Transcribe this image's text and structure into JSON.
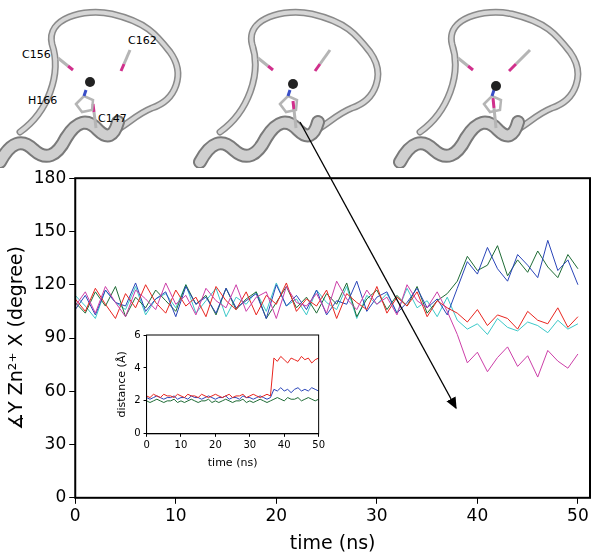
{
  "chart_data": [
    {
      "type": "line",
      "xlabel": "time (ns)",
      "ylabel": "∡Y Zn²⁺ X (degree)",
      "x": [
        0,
        1,
        2,
        3,
        4,
        5,
        6,
        7,
        8,
        9,
        10,
        11,
        12,
        13,
        14,
        15,
        16,
        17,
        18,
        19,
        20,
        21,
        22,
        23,
        24,
        25,
        26,
        27,
        28,
        29,
        30,
        31,
        32,
        33,
        34,
        35,
        36,
        37,
        38,
        39,
        40,
        41,
        42,
        43,
        44,
        45,
        46,
        47,
        48,
        49,
        50
      ],
      "xlim": [
        0,
        51.2
      ],
      "xticks": [
        0,
        10,
        20,
        30,
        40,
        50
      ],
      "ylim": [
        0,
        180
      ],
      "yticks": [
        0,
        30,
        60,
        90,
        120,
        150,
        180
      ],
      "series": [
        {
          "color": "#cc3fa8",
          "values": [
            108,
            116,
            104,
            119,
            110,
            102,
            117,
            112,
            106,
            121,
            109,
            114,
            103,
            118,
            111,
            107,
            120,
            105,
            113,
            116,
            101,
            119,
            110,
            108,
            115,
            104,
            122,
            112,
            106,
            117,
            109,
            113,
            103,
            120,
            111,
            107,
            116,
            105,
            92,
            76,
            82,
            71,
            79,
            85,
            74,
            80,
            68,
            83,
            77,
            73,
            81
          ]
        },
        {
          "color": "#e8251f",
          "values": [
            112,
            105,
            118,
            109,
            101,
            115,
            107,
            120,
            110,
            104,
            117,
            108,
            113,
            102,
            119,
            111,
            106,
            116,
            103,
            114,
            109,
            121,
            105,
            112,
            108,
            117,
            101,
            115,
            110,
            106,
            119,
            104,
            113,
            108,
            116,
            102,
            111,
            107,
            104,
            99,
            106,
            97,
            103,
            101,
            95,
            105,
            100,
            98,
            107,
            96,
            102
          ]
        },
        {
          "color": "#2a45b8",
          "values": [
            106,
            114,
            103,
            117,
            110,
            108,
            121,
            105,
            112,
            116,
            102,
            119,
            109,
            113,
            104,
            118,
            107,
            111,
            115,
            101,
            120,
            108,
            114,
            106,
            117,
            103,
            111,
            109,
            122,
            105,
            113,
            116,
            104,
            110,
            118,
            107,
            112,
            103,
            118,
            133,
            126,
            141,
            129,
            122,
            137,
            131,
            124,
            145,
            128,
            134,
            120
          ]
        },
        {
          "color": "#1e6b35",
          "values": [
            110,
            104,
            116,
            108,
            119,
            102,
            113,
            107,
            117,
            111,
            105,
            120,
            109,
            114,
            103,
            118,
            106,
            112,
            116,
            101,
            110,
            119,
            107,
            113,
            104,
            115,
            109,
            121,
            102,
            112,
            117,
            106,
            114,
            108,
            119,
            104,
            111,
            115,
            122,
            136,
            128,
            131,
            142,
            125,
            134,
            127,
            139,
            130,
            124,
            137,
            129
          ]
        },
        {
          "color": "#3cc8c8",
          "values": [
            114,
            108,
            101,
            117,
            110,
            106,
            119,
            103,
            112,
            115,
            107,
            120,
            104,
            111,
            118,
            102,
            113,
            109,
            116,
            105,
            121,
            108,
            112,
            103,
            117,
            110,
            106,
            119,
            101,
            114,
            109,
            115,
            104,
            118,
            107,
            111,
            102,
            113,
            100,
            95,
            98,
            92,
            101,
            96,
            94,
            99,
            97,
            93,
            100,
            95,
            98
          ]
        }
      ]
    },
    {
      "type": "line",
      "xlabel": "time (ns)",
      "ylabel": "distance (Å)",
      "x": [
        0,
        1,
        2,
        3,
        4,
        5,
        6,
        7,
        8,
        9,
        10,
        11,
        12,
        13,
        14,
        15,
        16,
        17,
        18,
        19,
        20,
        21,
        22,
        23,
        24,
        25,
        26,
        27,
        28,
        29,
        30,
        31,
        32,
        33,
        34,
        35,
        36,
        37,
        38,
        39,
        40,
        41,
        42,
        43,
        44,
        45,
        46,
        47,
        48,
        49,
        50
      ],
      "xlim": [
        0,
        50
      ],
      "xticks": [
        0,
        10,
        20,
        30,
        40,
        50
      ],
      "ylim": [
        0,
        6
      ],
      "yticks": [
        0,
        2,
        4,
        6
      ],
      "series": [
        {
          "color": "#e8251f",
          "values": [
            2.3,
            2.2,
            2.4,
            2.3,
            2.2,
            2.4,
            2.3,
            2.3,
            2.2,
            2.4,
            2.3,
            2.2,
            2.4,
            2.3,
            2.3,
            2.2,
            2.4,
            2.3,
            2.2,
            2.3,
            2.4,
            2.3,
            2.2,
            2.3,
            2.4,
            2.2,
            2.3,
            2.3,
            2.4,
            2.2,
            2.3,
            2.4,
            2.3,
            2.2,
            2.3,
            2.4,
            2.3,
            4.6,
            4.4,
            4.7,
            4.5,
            4.3,
            4.6,
            4.5,
            4.4,
            4.7,
            4.5,
            4.6,
            4.3,
            4.5,
            4.6
          ]
        },
        {
          "color": "#2a45b8",
          "values": [
            2.2,
            2.1,
            2.2,
            2.3,
            2.2,
            2.1,
            2.2,
            2.2,
            2.3,
            2.1,
            2.2,
            2.2,
            2.1,
            2.3,
            2.2,
            2.2,
            2.1,
            2.2,
            2.3,
            2.2,
            2.1,
            2.2,
            2.2,
            2.3,
            2.1,
            2.2,
            2.2,
            2.1,
            2.3,
            2.2,
            2.2,
            2.1,
            2.2,
            2.3,
            2.2,
            2.1,
            2.2,
            2.7,
            2.6,
            2.8,
            2.6,
            2.7,
            2.5,
            2.7,
            2.8,
            2.6,
            2.7,
            2.6,
            2.8,
            2.7,
            2.6
          ]
        },
        {
          "color": "#1e6b35",
          "values": [
            2.0,
            1.9,
            2.0,
            2.1,
            2.0,
            1.9,
            2.0,
            2.0,
            2.1,
            1.9,
            2.0,
            1.9,
            2.0,
            2.1,
            2.0,
            1.9,
            2.0,
            2.0,
            2.1,
            1.9,
            2.0,
            1.9,
            2.0,
            2.1,
            2.0,
            1.9,
            2.0,
            2.0,
            2.1,
            1.9,
            2.0,
            1.9,
            2.0,
            2.1,
            2.0,
            1.9,
            2.0,
            2.1,
            2.2,
            2.1,
            2.0,
            2.2,
            2.1,
            2.1,
            2.2,
            2.0,
            2.1,
            2.2,
            2.1,
            2.0,
            2.1
          ]
        }
      ]
    }
  ],
  "structure_labels": [
    "C156",
    "C162",
    "H166",
    "C147"
  ]
}
